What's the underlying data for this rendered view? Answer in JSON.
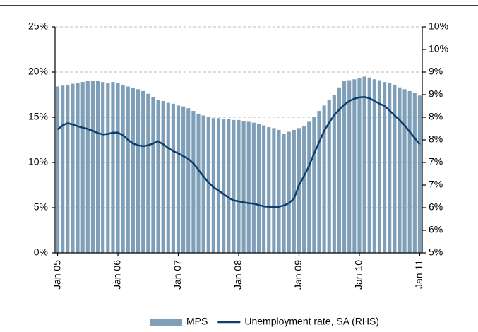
{
  "chart_data": {
    "type": "bar",
    "categories": [
      "Jan 05",
      null,
      null,
      null,
      null,
      null,
      null,
      null,
      null,
      null,
      null,
      null,
      "Jan 06",
      null,
      null,
      null,
      null,
      null,
      null,
      null,
      null,
      null,
      null,
      null,
      "Jan 07",
      null,
      null,
      null,
      null,
      null,
      null,
      null,
      null,
      null,
      null,
      null,
      "Jan 08",
      null,
      null,
      null,
      null,
      null,
      null,
      null,
      null,
      null,
      null,
      null,
      "Jan 09",
      null,
      null,
      null,
      null,
      null,
      null,
      null,
      null,
      null,
      null,
      null,
      "Jan 10",
      null,
      null,
      null,
      null,
      null,
      null,
      null,
      null,
      null,
      null,
      null,
      "Jan 11"
    ],
    "series": [
      {
        "name": "MPS",
        "type": "bar",
        "color": "#7f9fb8",
        "values": [
          18.4,
          18.5,
          18.6,
          18.7,
          18.8,
          18.9,
          19.0,
          19.0,
          19.0,
          18.9,
          18.8,
          18.9,
          18.8,
          18.6,
          18.4,
          18.2,
          18.1,
          17.9,
          17.6,
          17.2,
          16.9,
          16.8,
          16.6,
          16.5,
          16.3,
          16.2,
          16.0,
          15.7,
          15.4,
          15.2,
          15.0,
          14.9,
          14.9,
          14.8,
          14.8,
          14.7,
          14.7,
          14.6,
          14.5,
          14.4,
          14.3,
          14.1,
          13.9,
          13.8,
          13.6,
          13.2,
          13.4,
          13.6,
          13.8,
          14.0,
          14.5,
          15.0,
          15.7,
          16.3,
          16.9,
          17.5,
          18.3,
          19.0,
          19.1,
          19.2,
          19.3,
          19.5,
          19.4,
          19.2,
          19.1,
          18.9,
          18.8,
          18.6,
          18.3,
          18.1,
          17.9,
          17.7,
          17.4
        ]
      },
      {
        "name": "Unemployment rate, SA (RHS)",
        "type": "line",
        "axis": "y2",
        "color": "#0d3d6b",
        "values": [
          7.73,
          7.82,
          7.87,
          7.84,
          7.8,
          7.77,
          7.74,
          7.7,
          7.65,
          7.62,
          7.63,
          7.66,
          7.66,
          7.6,
          7.5,
          7.42,
          7.38,
          7.36,
          7.38,
          7.42,
          7.47,
          7.4,
          7.32,
          7.25,
          7.2,
          7.14,
          7.08,
          6.98,
          6.84,
          6.69,
          6.56,
          6.45,
          6.38,
          6.3,
          6.22,
          6.16,
          6.14,
          6.12,
          6.1,
          6.09,
          6.06,
          6.03,
          6.02,
          6.02,
          6.02,
          6.05,
          6.1,
          6.2,
          6.5,
          6.7,
          6.92,
          7.2,
          7.45,
          7.7,
          7.88,
          8.05,
          8.17,
          8.28,
          8.36,
          8.41,
          8.44,
          8.45,
          8.42,
          8.36,
          8.3,
          8.25,
          8.15,
          8.04,
          7.94,
          7.82,
          7.68,
          7.54,
          7.4
        ]
      }
    ],
    "ylim": [
      0,
      25
    ],
    "yticks": [
      {
        "value": 0,
        "label": "0%"
      },
      {
        "value": 5,
        "label": "5%"
      },
      {
        "value": 10,
        "label": "10%"
      },
      {
        "value": 15,
        "label": "15%"
      },
      {
        "value": 20,
        "label": "20%"
      },
      {
        "value": 25,
        "label": "25%"
      }
    ],
    "y2lim": [
      5,
      10
    ],
    "y2ticks": [
      {
        "value": 5,
        "label": "5%"
      },
      {
        "value": 5.5,
        "label": "6%"
      },
      {
        "value": 6,
        "label": "6%"
      },
      {
        "value": 6.5,
        "label": "7%"
      },
      {
        "value": 7,
        "label": "7%"
      },
      {
        "value": 7.5,
        "label": "8%"
      },
      {
        "value": 8,
        "label": "8%"
      },
      {
        "value": 8.5,
        "label": "9%"
      },
      {
        "value": 9,
        "label": "9%"
      },
      {
        "value": 9.5,
        "label": "10%"
      },
      {
        "value": 10,
        "label": "10%"
      }
    ],
    "grid": true,
    "legend": "bottom"
  }
}
